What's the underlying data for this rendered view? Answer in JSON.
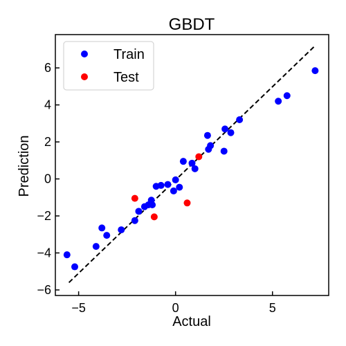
{
  "chart_data": {
    "type": "scatter",
    "title": "GBDT",
    "xlabel": "Actual",
    "ylabel": "Prediction",
    "xlim": [
      -6.2,
      7.9
    ],
    "ylim": [
      -6.3,
      7.8
    ],
    "xticks": [
      -5,
      0,
      5
    ],
    "yticks": [
      -6,
      -4,
      -2,
      0,
      2,
      4,
      6
    ],
    "grid": false,
    "legend_position": "top-left",
    "reference_line": {
      "style": "dashed",
      "color": "#000000",
      "x": [
        -5.5,
        7.2
      ],
      "y": [
        -5.6,
        7.2
      ]
    },
    "series": [
      {
        "name": "Train",
        "color": "#0000ff",
        "points": [
          [
            -5.6,
            -4.1
          ],
          [
            -5.2,
            -4.75
          ],
          [
            -4.1,
            -3.65
          ],
          [
            -3.8,
            -2.65
          ],
          [
            -3.55,
            -3.05
          ],
          [
            -2.8,
            -2.75
          ],
          [
            -2.1,
            -2.25
          ],
          [
            -1.9,
            -1.75
          ],
          [
            -1.6,
            -1.5
          ],
          [
            -1.4,
            -1.4
          ],
          [
            -1.25,
            -1.15
          ],
          [
            -1.2,
            -1.4
          ],
          [
            -1.0,
            -0.4
          ],
          [
            -0.75,
            -0.35
          ],
          [
            -0.4,
            -0.3
          ],
          [
            -0.1,
            -0.65
          ],
          [
            0.0,
            -0.05
          ],
          [
            0.2,
            -0.45
          ],
          [
            0.4,
            0.95
          ],
          [
            0.85,
            0.85
          ],
          [
            1.0,
            0.55
          ],
          [
            1.7,
            1.6
          ],
          [
            1.65,
            2.35
          ],
          [
            1.8,
            1.8
          ],
          [
            2.5,
            1.5
          ],
          [
            2.55,
            2.7
          ],
          [
            2.85,
            2.5
          ],
          [
            3.3,
            3.2
          ],
          [
            5.3,
            4.2
          ],
          [
            5.75,
            4.5
          ],
          [
            7.2,
            5.85
          ]
        ]
      },
      {
        "name": "Test",
        "color": "#ff0000",
        "points": [
          [
            -2.1,
            -1.05
          ],
          [
            -1.1,
            -2.05
          ],
          [
            0.6,
            -1.3
          ],
          [
            1.2,
            1.2
          ]
        ]
      }
    ]
  }
}
